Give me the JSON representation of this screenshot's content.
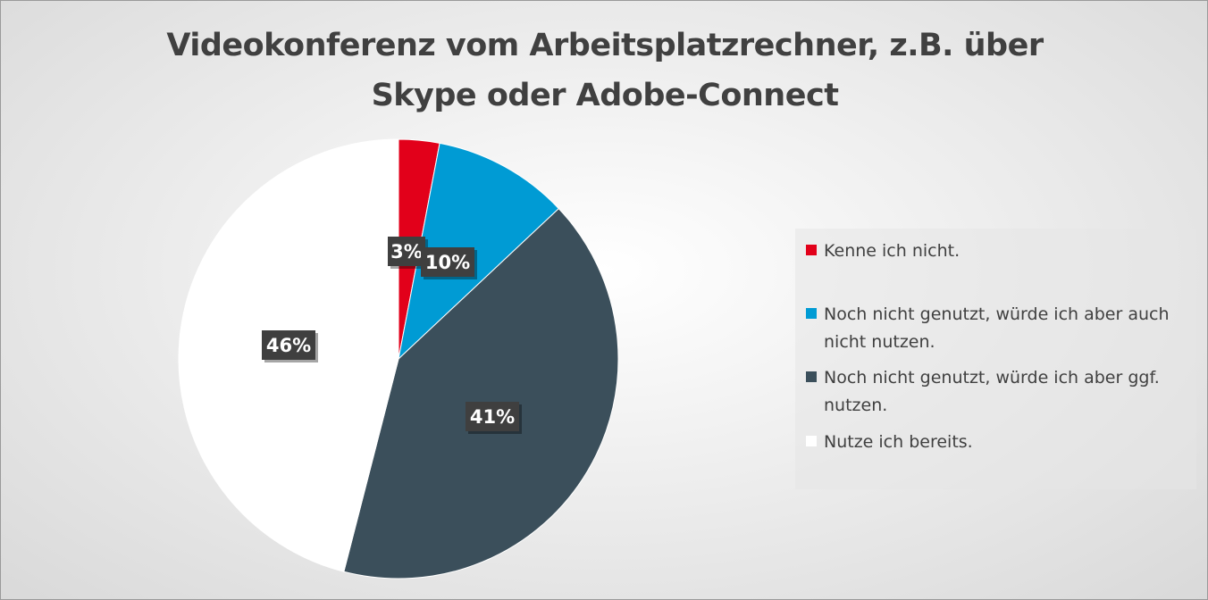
{
  "chart_data": {
    "type": "pie",
    "title": [
      "Videokonferenz vom Arbeitsplatzrechner, z.B. über",
      "Skype oder Adobe-Connect"
    ],
    "slices": [
      {
        "label": "Kenne ich nicht.",
        "value": 3,
        "display": "3%",
        "color": "#E2001A"
      },
      {
        "label": "Noch nicht genutzt, würde ich aber auch nicht nutzen.",
        "value": 10,
        "display": "10%",
        "color": "#009BD4"
      },
      {
        "label": "Noch nicht genutzt, würde ich aber ggf. nutzen.",
        "value": 41,
        "display": "41%",
        "color": "#3B4F5B"
      },
      {
        "label": "Nutze ich bereits.",
        "value": 46,
        "display": "46%",
        "color": "#FFFFFF"
      }
    ],
    "legend_position": "right",
    "start_angle": "12 o'clock, clockwise"
  }
}
